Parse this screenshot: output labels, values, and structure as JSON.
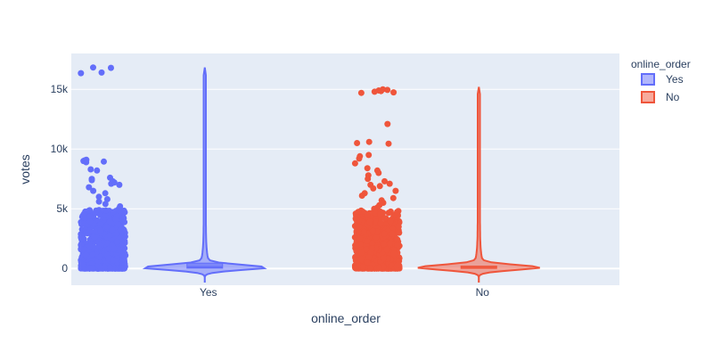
{
  "chart_data": {
    "type": "violin",
    "xlabel": "online_order",
    "ylabel": "votes",
    "categories": [
      "Yes",
      "No"
    ],
    "ylim": [
      -1400,
      18000
    ],
    "yticks": [
      0,
      5000,
      10000,
      15000
    ],
    "ytick_labels": [
      "0",
      "5k",
      "10k",
      "15k"
    ],
    "legend": {
      "title": "online_order",
      "position": "top-right",
      "entries": [
        "Yes",
        "No"
      ]
    },
    "grid": true,
    "background": "#e5ecf6",
    "series": [
      {
        "name": "Yes",
        "color": "#636efa",
        "max": 16832,
        "q1": 30,
        "median": 120,
        "q3": 450,
        "min": 0,
        "points": [
          16832,
          16800,
          16400,
          16350,
          9100,
          9050,
          9000,
          8950,
          8900,
          8300,
          8200,
          7600,
          7500,
          7400,
          7300,
          7200,
          7100,
          7000,
          6800,
          6500,
          6300,
          6000,
          5800,
          5600,
          5400,
          5200,
          5000,
          4900,
          4800,
          4700,
          4600,
          4500,
          4400,
          4200,
          4000,
          3800,
          3600,
          3400,
          3200,
          3000,
          2800,
          2600,
          2400,
          2200,
          2000,
          1800,
          1600,
          1400,
          1200,
          1000,
          800,
          600,
          400,
          200,
          0
        ]
      },
      {
        "name": "No",
        "color": "#ef553b",
        "max": 15200,
        "q1": 10,
        "median": 60,
        "q3": 200,
        "min": 0,
        "points": [
          15000,
          14950,
          14900,
          14850,
          14800,
          14750,
          14700,
          12100,
          10600,
          10500,
          10450,
          9500,
          9400,
          9200,
          8800,
          8400,
          8200,
          8000,
          7800,
          7500,
          7300,
          7100,
          7000,
          6900,
          6700,
          6500,
          6300,
          6100,
          5900,
          5700,
          5500,
          5300,
          5100,
          5000,
          4800,
          4600,
          4400,
          4200,
          4000,
          3800,
          3600,
          3400,
          3200,
          3000,
          2800,
          2600,
          2400,
          2200,
          2000,
          1800,
          1600,
          1400,
          1200,
          1000,
          800,
          600,
          400,
          200,
          0
        ]
      }
    ]
  }
}
